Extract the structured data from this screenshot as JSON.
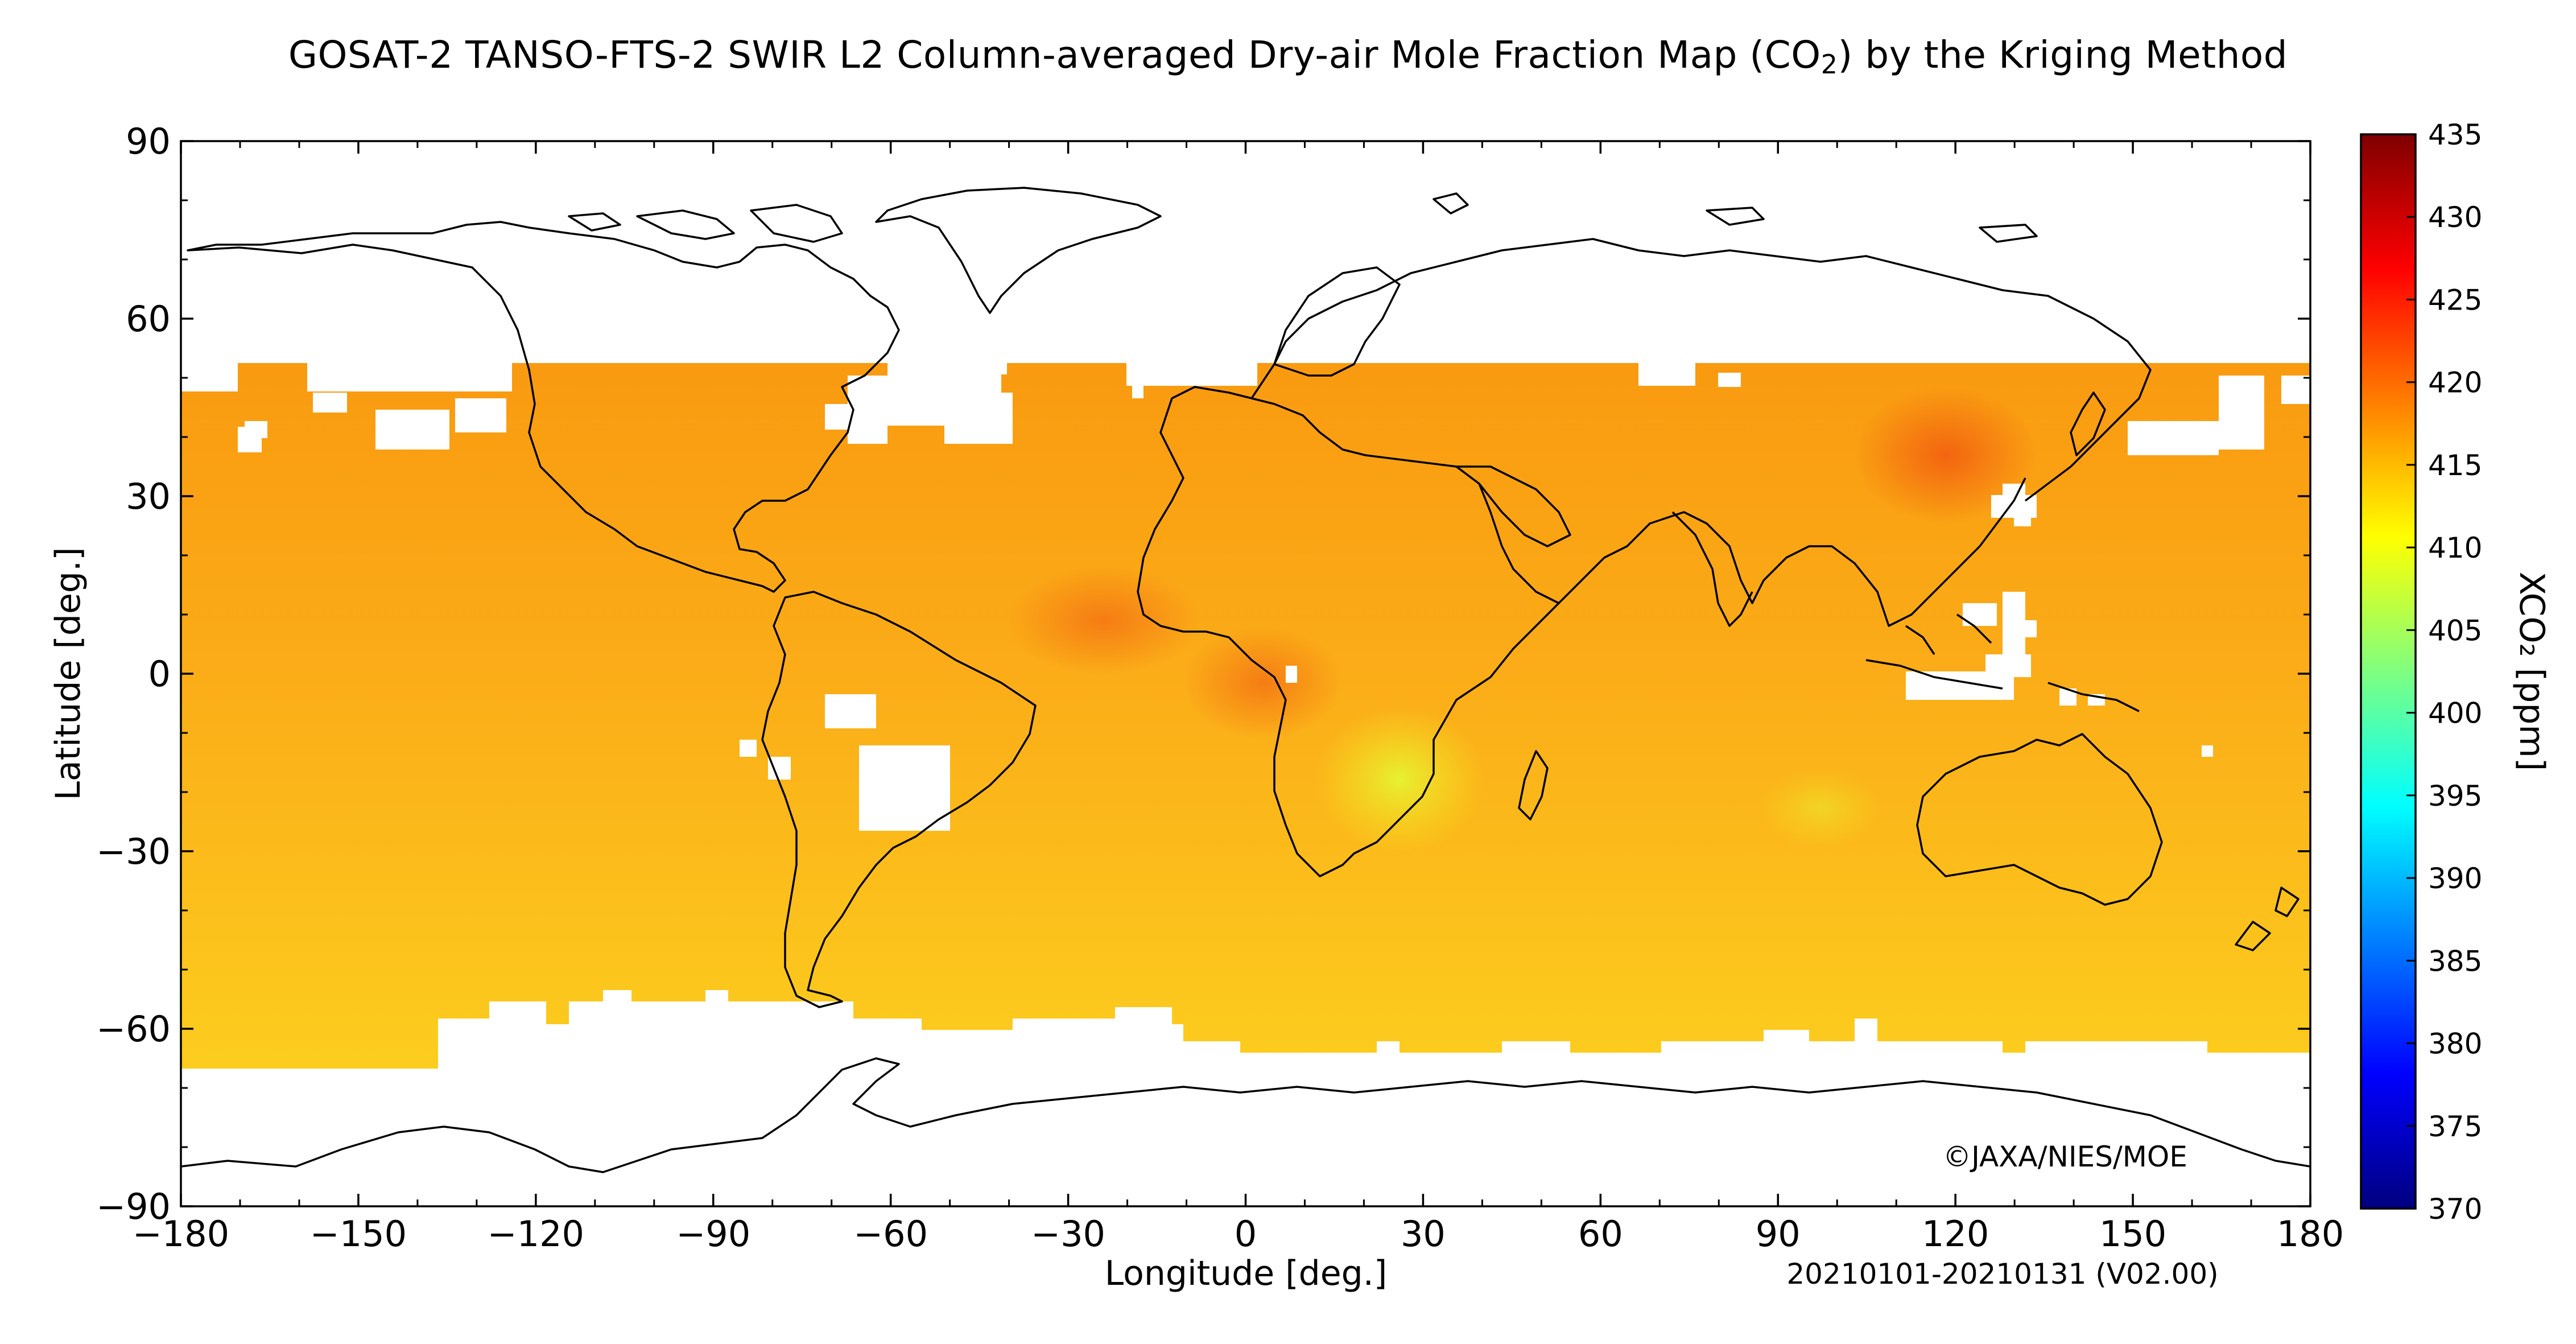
{
  "title": "GOSAT-2 TANSO-FTS-2 SWIR L2 Column-averaged Dry-air Mole Fraction Map (CO",
  "title_sub": "2",
  "title_tail": ") by the Kriging Method",
  "map": {
    "x_label": "Longitude [deg.]",
    "y_label": "Latitude [deg.]",
    "x_ticks": [
      "−180",
      "−150",
      "−120",
      "−90",
      "−60",
      "−30",
      "0",
      "30",
      "60",
      "90",
      "120",
      "150",
      "180"
    ],
    "y_ticks": [
      "90",
      "60",
      "30",
      "0",
      "−30",
      "−60",
      "−90"
    ],
    "copyright": "©JAXA/NIES/MOE",
    "period": "20210101-20210131 (V02.00)"
  },
  "colorbar": {
    "label": "XCO₂ [ppm]",
    "ticks": [
      "435",
      "430",
      "425",
      "420",
      "415",
      "410",
      "405",
      "400",
      "395",
      "390",
      "385",
      "380",
      "375",
      "370"
    ],
    "min": 370,
    "max": 435,
    "colors": [
      "#00007f",
      "#0000ff",
      "#007fff",
      "#00ffff",
      "#7fff7f",
      "#ffff00",
      "#ff7f00",
      "#ff0000",
      "#7f0000"
    ]
  },
  "colors": {
    "ocean_field": "#fbb01a",
    "north_field": "#f99a10",
    "south_field": "#fcc91c",
    "hotspot": "#f26a10",
    "low_spot": "#e8f030"
  }
}
